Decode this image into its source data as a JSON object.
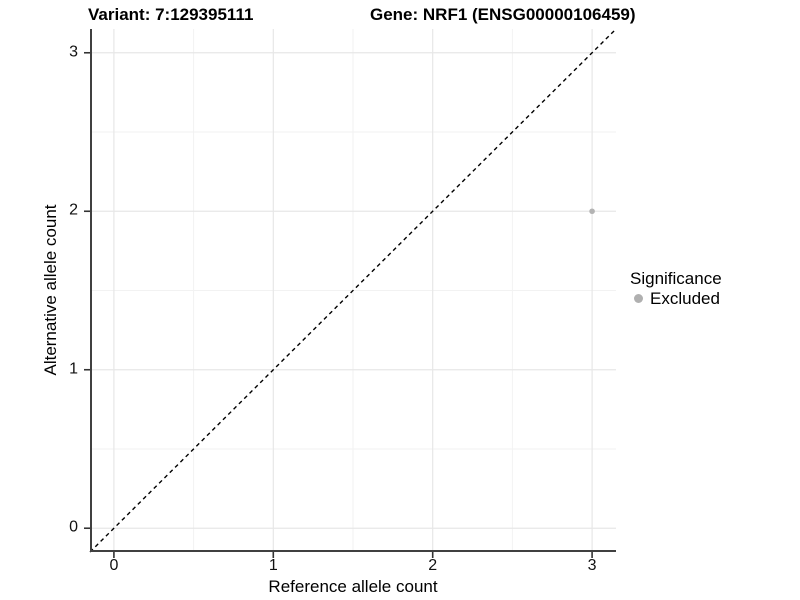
{
  "titles": {
    "variant": "Variant: 7:129395111",
    "gene": "Gene: NRF1 (ENSG00000106459)"
  },
  "chart_data": {
    "type": "scatter",
    "title_left": "Variant: 7:129395111",
    "title_right": "Gene: NRF1 (ENSG00000106459)",
    "xlabel": "Reference allele count",
    "ylabel": "Alternative allele count",
    "xlim": [
      -0.15,
      3.15
    ],
    "ylim": [
      -0.15,
      3.15
    ],
    "xticks": [
      0,
      1,
      2,
      3
    ],
    "yticks": [
      0,
      1,
      2,
      3
    ],
    "minor_grid_offset": 0.5,
    "grid": true,
    "points": [
      {
        "x": 3,
        "y": 2,
        "significance": "Excluded"
      }
    ],
    "reference_line": {
      "equation": "y = x",
      "style": "dashed"
    },
    "legend": {
      "title": "Significance",
      "position": "right",
      "items": [
        {
          "label": "Excluded",
          "color": "#b0b0b0"
        }
      ]
    }
  },
  "colors": {
    "background": "#ffffff",
    "point": "#b3b3b3",
    "legend_dot": "#b0b0b0",
    "grid_major": "#e7e7e7",
    "grid_minor": "#f2f2f2",
    "axis_line": "#404040",
    "tick_mark": "#333333",
    "dashed_line": "#000000",
    "text": "#000000"
  }
}
